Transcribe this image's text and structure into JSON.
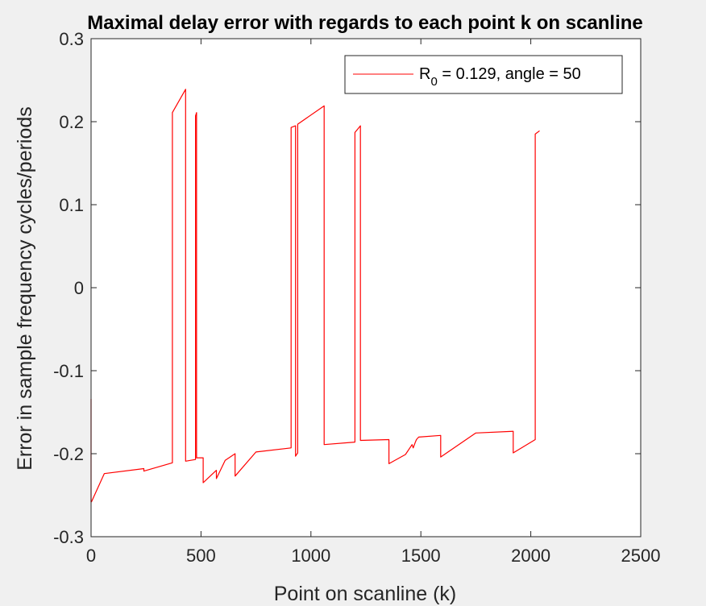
{
  "chart_data": {
    "type": "line",
    "title": "Maximal delay error with regards to each point k on scanline",
    "xlabel": "Point on scanline (k)",
    "ylabel": "Error in sample frequency cycles/periods",
    "xlim": [
      0,
      2500
    ],
    "ylim": [
      -0.3,
      0.3
    ],
    "xticks": [
      0,
      500,
      1000,
      1500,
      2000,
      2500
    ],
    "xtick_labels": [
      "0",
      "500",
      "1000",
      "1500",
      "2000",
      "2500"
    ],
    "yticks": [
      -0.3,
      -0.2,
      -0.1,
      0,
      0.1,
      0.2,
      0.3
    ],
    "ytick_labels": [
      "-0.3",
      "-0.2",
      "-0.1",
      "0",
      "0.1",
      "0.2",
      "0.3"
    ],
    "grid": false,
    "legend_position": "top-right",
    "legend": {
      "text_main": "R",
      "text_sub": "0",
      "text_rest": " = 0.129, angle = 50"
    },
    "series": [
      {
        "name": "R0 = 0.129, angle = 50",
        "color": "#ff0000",
        "x": [
          0,
          0,
          2,
          60,
          240,
          240,
          370,
          370,
          430,
          430,
          475,
          475,
          480,
          480,
          510,
          510,
          570,
          570,
          610,
          610,
          655,
          655,
          750,
          910,
          910,
          930,
          930,
          940,
          940,
          1060,
          1060,
          1200,
          1200,
          1225,
          1225,
          1355,
          1355,
          1430,
          1460,
          1465,
          1475,
          1480,
          1490,
          1590,
          1590,
          1750,
          1920,
          1920,
          2020,
          2020,
          2040
        ],
        "y": [
          -0.134,
          -0.258,
          -0.258,
          -0.224,
          -0.218,
          -0.221,
          -0.211,
          0.211,
          0.239,
          -0.209,
          -0.207,
          0.207,
          0.211,
          -0.205,
          -0.205,
          -0.235,
          -0.22,
          -0.23,
          -0.208,
          -0.208,
          -0.2,
          -0.227,
          -0.198,
          -0.193,
          0.193,
          0.195,
          -0.203,
          -0.199,
          0.197,
          0.219,
          -0.189,
          -0.186,
          0.187,
          0.195,
          -0.184,
          -0.183,
          -0.212,
          -0.201,
          -0.189,
          -0.193,
          -0.186,
          -0.183,
          -0.18,
          -0.178,
          -0.204,
          -0.175,
          -0.173,
          -0.199,
          -0.183,
          0.185,
          0.189
        ]
      }
    ]
  }
}
